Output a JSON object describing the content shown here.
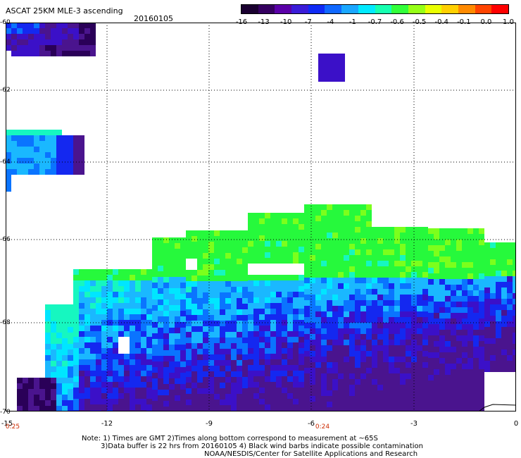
{
  "header": {
    "title": "ASCAT 25KM MLE-3 ascending",
    "date": "20160105"
  },
  "legend": {
    "labels": [
      "-16",
      "-13",
      "-10",
      "-7",
      "-4",
      "-1",
      "-0.7",
      "-0.6",
      "-0.5",
      "-0.4",
      "-0.1",
      "0.0",
      "1.0"
    ],
    "colors": [
      "#1a0030",
      "#350060",
      "#5a00a8",
      "#3a1cd8",
      "#0f2af5",
      "#1068ff",
      "#1aa7ff",
      "#00eaff",
      "#16ffb0",
      "#32ff3a",
      "#96ff16",
      "#eaff00",
      "#ffd000",
      "#ff8a00",
      "#ff4400",
      "#ff0000"
    ]
  },
  "axes": {
    "y_ticks": [
      "-60",
      "-62",
      "-64",
      "-66",
      "-68",
      "-70"
    ],
    "x_ticks": [
      "-15",
      "-12",
      "-9",
      "-6",
      "-3",
      "0"
    ],
    "time_labels": [
      "0:25",
      "0:24"
    ]
  },
  "footer": {
    "note1": "Note: 1) Times are GMT 2)Times along bottom correspond to measurement at ~65S",
    "note2": "3)Data buffer is 22 hrs from 20160105 4) Black wind barbs indicate possible contamination",
    "note3": "NOAA/NESDIS/Center for Satellite Applications and Research"
  },
  "map_colors": {
    "deep_purple": "#4a148e",
    "dark_purple": "#2a0058",
    "violet": "#3b10c8",
    "blue": "#1428f0",
    "mid_blue": "#0a74ff",
    "light_blue": "#1ab8ff",
    "cyan": "#00e6ff",
    "aqua": "#16f7c0",
    "green": "#26f93c",
    "lime": "#7cff1c"
  }
}
